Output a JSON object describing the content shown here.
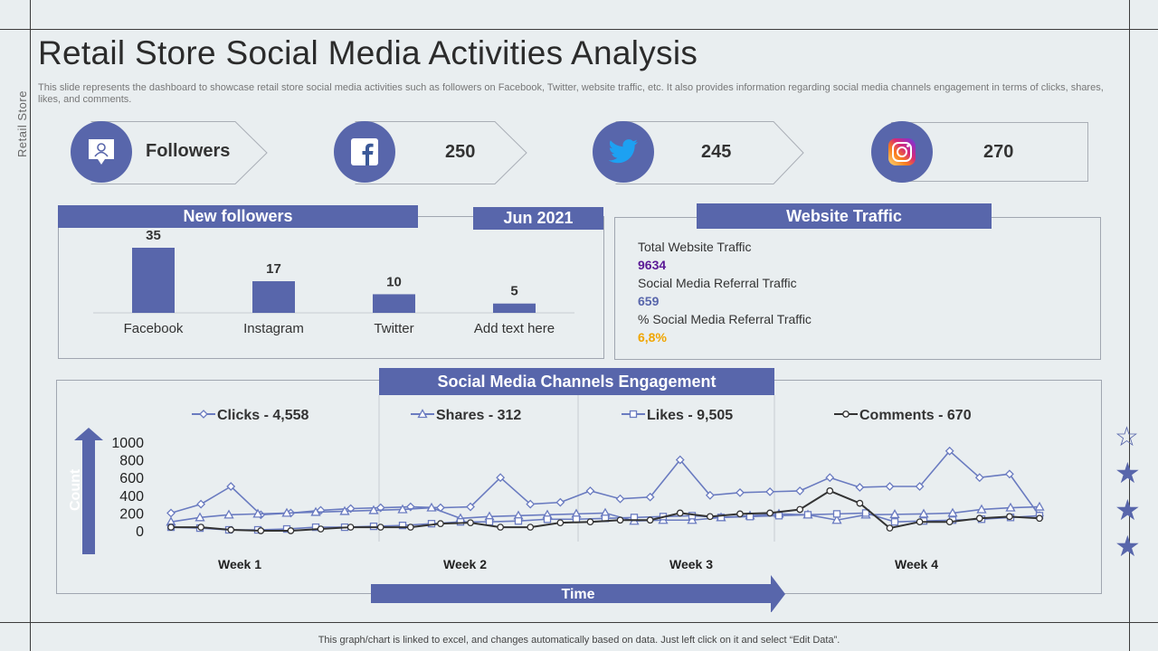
{
  "header": {
    "title": "Retail Store Social Media Activities Analysis",
    "subtitle": "This slide represents the dashboard to showcase retail store social media activities such as followers on Facebook, Twitter, website traffic, etc. It also provides information regarding social media channels engagement in terms of clicks, shares, likes, and comments.",
    "side_label": "Retail Store"
  },
  "followers": {
    "label": "Followers",
    "facebook": "250",
    "twitter": "245",
    "instagram": "270"
  },
  "new_followers": {
    "banner": "New followers",
    "date": "Jun 2021"
  },
  "website_traffic": {
    "banner": "Website Traffic",
    "total_label": "Total Website Traffic",
    "total_value": "9634",
    "referral_label": "Social Media Referral Traffic",
    "referral_value": "659",
    "pct_label": "% Social Media Referral Traffic",
    "pct_value": "6,8%",
    "colors": {
      "total": "#5b1a96",
      "referral": "#5866ab",
      "pct": "#f0a500"
    }
  },
  "engagement": {
    "banner": "Social Media Channels Engagement",
    "y_axis_label": "Count",
    "x_axis_label": "Time"
  },
  "footer": "This graph/chart is linked to excel,  and changes automatically based on data. Just left click on it and select “Edit Data”.",
  "chart_data": [
    {
      "type": "bar",
      "title": "New followers",
      "categories": [
        "Facebook",
        "Instagram",
        "Twitter",
        "Add text here"
      ],
      "values": [
        35,
        17,
        10,
        5
      ],
      "ylim": [
        0,
        40
      ]
    },
    {
      "type": "line",
      "title": "Social Media Channels Engagement",
      "xlabel": "Time",
      "ylabel": "Count",
      "ylim": [
        0,
        1000
      ],
      "yticks": [
        1000,
        800,
        600,
        400,
        200,
        0
      ],
      "week_labels": [
        "Week 1",
        "Week 2",
        "Week 3",
        "Week 4"
      ],
      "series": [
        {
          "name": "Clicks - 4,558",
          "marker": "diamond",
          "color": "#6a7bc0",
          "values": [
            200,
            300,
            500,
            180,
            200,
            230,
            250,
            260,
            270,
            260,
            270,
            600,
            300,
            320,
            450,
            360,
            380,
            800,
            400,
            430,
            440,
            450,
            600,
            490,
            500,
            500,
            900,
            600,
            640,
            170
          ]
        },
        {
          "name": "Shares - 312",
          "marker": "triangle",
          "color": "#6a7bc0",
          "values": [
            100,
            150,
            180,
            190,
            200,
            210,
            220,
            230,
            240,
            260,
            140,
            160,
            170,
            180,
            190,
            200,
            110,
            120,
            120,
            150,
            170,
            190,
            180,
            120,
            180,
            185,
            190,
            200,
            240,
            260,
            270
          ]
        },
        {
          "name": "Likes - 9,505",
          "marker": "square",
          "color": "#6a7bc0",
          "values": [
            40,
            30,
            10,
            10,
            20,
            40,
            40,
            50,
            60,
            80,
            100,
            100,
            110,
            130,
            130,
            140,
            150,
            160,
            170,
            150,
            160,
            170,
            180,
            190,
            200,
            100,
            110,
            120,
            130,
            150,
            170
          ]
        },
        {
          "name": "Comments - 670",
          "marker": "circle",
          "color": "#333333",
          "values": [
            40,
            40,
            10,
            0,
            0,
            20,
            40,
            40,
            40,
            80,
            90,
            40,
            40,
            90,
            100,
            120,
            120,
            200,
            160,
            190,
            200,
            240,
            450,
            310,
            30,
            100,
            100,
            140,
            160,
            140
          ]
        }
      ]
    }
  ]
}
